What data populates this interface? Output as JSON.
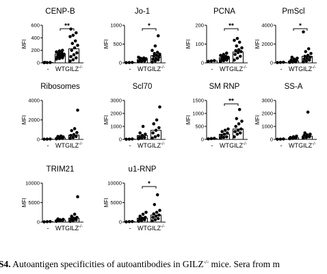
{
  "caption": {
    "label": "S4.",
    "text_before_sup": "Autoantigen specificities of autoantibodies in GILZ",
    "sup": "-/-",
    "text_after_sup": " mice. Sera from m"
  },
  "chart_data": [
    {
      "type": "scatter",
      "title": "CENP-B",
      "ylabel": "MFI",
      "ylim": [
        0,
        600
      ],
      "yticks": [
        0,
        200,
        400,
        600
      ],
      "categories": [
        "-",
        "WT",
        "GILZ-/-"
      ],
      "significance": "**",
      "groups": [
        {
          "name": "-",
          "mean": 5,
          "points": [
            3,
            4,
            6,
            8
          ]
        },
        {
          "name": "WT",
          "mean": 140,
          "points": [
            60,
            70,
            80,
            95,
            100,
            110,
            120,
            130,
            140,
            150,
            160,
            175,
            190,
            200
          ]
        },
        {
          "name": "GILZ-/-",
          "mean": 225,
          "points": [
            30,
            50,
            80,
            100,
            130,
            160,
            200,
            240,
            280,
            310,
            350,
            420,
            440,
            480,
            540
          ]
        }
      ]
    },
    {
      "type": "scatter",
      "title": "Jo-1",
      "ylabel": "MFI",
      "ylim": [
        0,
        1000
      ],
      "yticks": [
        0,
        500,
        1000
      ],
      "categories": [
        "-",
        "WT",
        "GILZ-/-"
      ],
      "significance": "*",
      "groups": [
        {
          "name": "-",
          "mean": 10,
          "points": [
            5,
            8,
            12
          ]
        },
        {
          "name": "WT",
          "mean": 90,
          "points": [
            30,
            40,
            50,
            60,
            70,
            80,
            90,
            100,
            110,
            120,
            130,
            150
          ]
        },
        {
          "name": "GILZ-/-",
          "mean": 190,
          "points": [
            20,
            50,
            80,
            100,
            120,
            150,
            180,
            200,
            230,
            250,
            280,
            330,
            450,
            720
          ]
        }
      ]
    },
    {
      "type": "scatter",
      "title": "PCNA",
      "ylabel": "MFI",
      "ylim": [
        0,
        200
      ],
      "yticks": [
        0,
        100,
        200
      ],
      "categories": [
        "-",
        "WT",
        "GILZ-/-"
      ],
      "significance": "**",
      "groups": [
        {
          "name": "-",
          "mean": 10,
          "points": [
            8,
            10,
            12
          ]
        },
        {
          "name": "WT",
          "mean": 28,
          "points": [
            8,
            12,
            15,
            18,
            20,
            22,
            25,
            28,
            30,
            32,
            35,
            40,
            45,
            52
          ]
        },
        {
          "name": "GILZ-/-",
          "mean": 58,
          "points": [
            15,
            25,
            35,
            45,
            55,
            60,
            65,
            70,
            80,
            90,
            110,
            120,
            130
          ]
        }
      ]
    },
    {
      "type": "scatter",
      "title": "PmScl",
      "ylabel": "MFI",
      "ylim": [
        0,
        4000
      ],
      "yticks": [
        0,
        2000,
        4000
      ],
      "categories": [
        "-",
        "WT",
        "GILZ-/-"
      ],
      "significance": "*",
      "groups": [
        {
          "name": "-",
          "mean": 50,
          "points": [
            30,
            50,
            70
          ]
        },
        {
          "name": "WT",
          "mean": 200,
          "points": [
            50,
            80,
            100,
            150,
            200,
            250,
            300,
            400,
            500,
            600
          ]
        },
        {
          "name": "GILZ-/-",
          "mean": 700,
          "points": [
            100,
            200,
            300,
            400,
            500,
            600,
            700,
            800,
            1000,
            1200,
            1500,
            3300
          ]
        }
      ]
    },
    {
      "type": "scatter",
      "title": "Ribosomes",
      "ylabel": "MFI",
      "ylim": [
        0,
        4000
      ],
      "yticks": [
        0,
        2000,
        4000
      ],
      "categories": [
        "-",
        "WT",
        "GILZ-/-"
      ],
      "significance": "",
      "groups": [
        {
          "name": "-",
          "mean": 30,
          "points": [
            20,
            30,
            40
          ]
        },
        {
          "name": "WT",
          "mean": 150,
          "points": [
            50,
            80,
            100,
            150,
            200,
            250,
            300,
            350
          ]
        },
        {
          "name": "GILZ-/-",
          "mean": 450,
          "points": [
            100,
            200,
            300,
            400,
            500,
            700,
            900,
            1100,
            3000
          ]
        }
      ]
    },
    {
      "type": "scatter",
      "title": "Scl70",
      "ylabel": "MFI",
      "ylim": [
        0,
        3000
      ],
      "yticks": [
        0,
        1000,
        2000,
        3000
      ],
      "categories": [
        "-",
        "WT",
        "GILZ-/-"
      ],
      "significance": "",
      "groups": [
        {
          "name": "-",
          "mean": 20,
          "points": [
            10,
            20,
            30
          ]
        },
        {
          "name": "WT",
          "mean": 300,
          "points": [
            50,
            100,
            150,
            200,
            300,
            400,
            500,
            1000
          ]
        },
        {
          "name": "GILZ-/-",
          "mean": 700,
          "points": [
            100,
            200,
            300,
            500,
            700,
            900,
            1200,
            1500,
            2500
          ]
        }
      ]
    },
    {
      "type": "scatter",
      "title": "SM RNP",
      "ylabel": "MFI",
      "ylim": [
        0,
        1500
      ],
      "yticks": [
        0,
        500,
        1000,
        1500
      ],
      "categories": [
        "-",
        "WT",
        "GILZ-/-"
      ],
      "significance": "**",
      "groups": [
        {
          "name": "-",
          "mean": 30,
          "points": [
            20,
            30,
            40
          ]
        },
        {
          "name": "WT",
          "mean": 200,
          "points": [
            50,
            80,
            100,
            150,
            200,
            250,
            300,
            350,
            400
          ]
        },
        {
          "name": "GILZ-/-",
          "mean": 400,
          "points": [
            100,
            200,
            250,
            300,
            350,
            400,
            500,
            600,
            700,
            800,
            1150
          ]
        }
      ]
    },
    {
      "type": "scatter",
      "title": "SS-A",
      "ylabel": "MFI",
      "ylim": [
        0,
        3000
      ],
      "yticks": [
        0,
        1000,
        2000,
        3000
      ],
      "categories": [
        "-",
        "WT",
        "GILZ-/-"
      ],
      "significance": "",
      "groups": [
        {
          "name": "-",
          "mean": 20,
          "points": [
            10,
            20,
            30
          ]
        },
        {
          "name": "WT",
          "mean": 120,
          "points": [
            50,
            80,
            100,
            150,
            200,
            250
          ]
        },
        {
          "name": "GILZ-/-",
          "mean": 250,
          "points": [
            100,
            150,
            200,
            300,
            350,
            400,
            500,
            2100
          ]
        }
      ]
    },
    {
      "type": "scatter",
      "title": "TRIM21",
      "ylabel": "MFI",
      "ylim": [
        0,
        10000
      ],
      "yticks": [
        0,
        5000,
        10000
      ],
      "categories": [
        "-",
        "WT",
        "GILZ-/-"
      ],
      "significance": "",
      "groups": [
        {
          "name": "-",
          "mean": 100,
          "points": [
            50,
            100,
            150
          ]
        },
        {
          "name": "WT",
          "mean": 500,
          "points": [
            200,
            300,
            400,
            500,
            600,
            700,
            800
          ]
        },
        {
          "name": "GILZ-/-",
          "mean": 1000,
          "points": [
            200,
            400,
            600,
            800,
            1000,
            1200,
            1500,
            2000,
            6500
          ]
        }
      ]
    },
    {
      "type": "scatter",
      "title": "u1-RNP",
      "ylabel": "MFI",
      "ylim": [
        0,
        10000
      ],
      "yticks": [
        0,
        5000,
        10000
      ],
      "categories": [
        "-",
        "WT",
        "GILZ-/-"
      ],
      "significance": "*",
      "groups": [
        {
          "name": "-",
          "mean": 100,
          "points": [
            50,
            100,
            150
          ]
        },
        {
          "name": "WT",
          "mean": 1000,
          "points": [
            200,
            400,
            600,
            800,
            1000,
            1200,
            1500,
            2000,
            2500
          ]
        },
        {
          "name": "GILZ-/-",
          "mean": 1800,
          "points": [
            300,
            600,
            900,
            1200,
            1500,
            1800,
            2100,
            2500,
            3000,
            4500,
            7000
          ]
        }
      ]
    }
  ]
}
